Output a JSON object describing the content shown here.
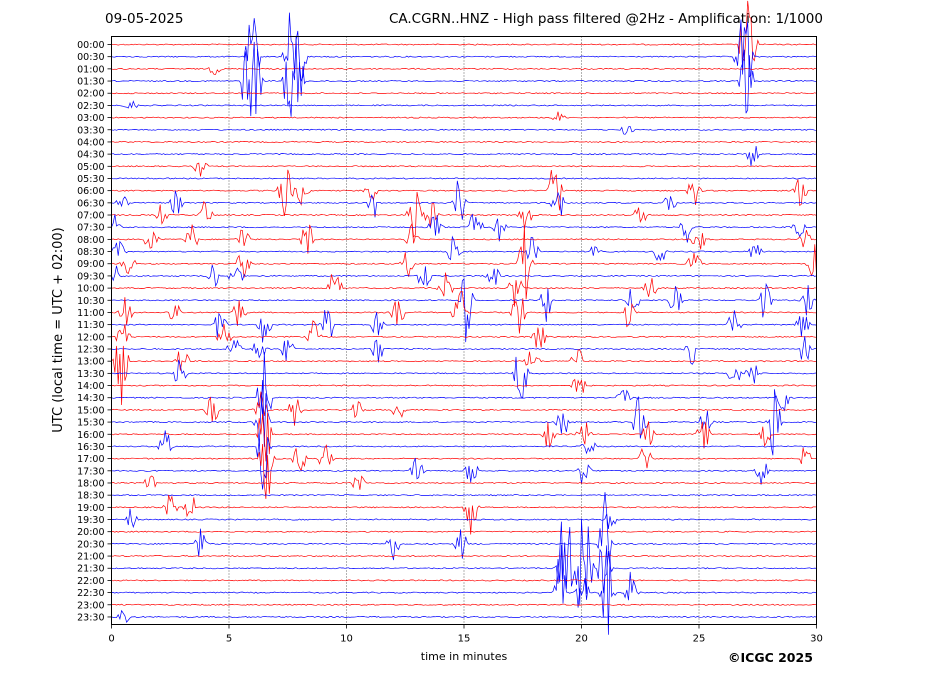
{
  "header": {
    "date": "09-05-2025",
    "title": "CA.CGRN..HNZ - High pass filtered @2Hz - Amplification: 1/1000"
  },
  "copyright": "©ICGC 2025",
  "chart_data": {
    "type": "line",
    "title": "CA.CGRN..HNZ - High pass filtered @2Hz - Amplification: 1/1000",
    "xlabel": "time in minutes",
    "ylabel": "UTC (local time = UTC + 02:00)",
    "xlim": [
      0,
      30
    ],
    "x_ticks": [
      0,
      5,
      10,
      15,
      20,
      25,
      30
    ],
    "grid": "vertical dotted lines at 5-minute intervals",
    "colors": {
      "odd_rows": "#ff0000",
      "even_rows": "#0000ff"
    },
    "traces": [
      {
        "label": "00:00",
        "color": "#ff0000",
        "spikes": [
          [
            27.0,
            1.0
          ],
          [
            27.2,
            0.8
          ]
        ]
      },
      {
        "label": "00:30",
        "color": "#0000ff",
        "spikes": [
          [
            6.0,
            1.0
          ],
          [
            7.6,
            0.9
          ],
          [
            8.0,
            0.9
          ],
          [
            26.8,
            0.8
          ],
          [
            27.0,
            1.0
          ]
        ]
      },
      {
        "label": "01:00",
        "color": "#ff0000",
        "spikes": [
          [
            4.4,
            0.1
          ]
        ]
      },
      {
        "label": "01:30",
        "color": "#0000ff",
        "spikes": [
          [
            5.8,
            1.0
          ],
          [
            6.1,
            1.0
          ],
          [
            7.6,
            1.0
          ],
          [
            7.9,
            0.9
          ],
          [
            27.0,
            1.0
          ]
        ]
      },
      {
        "label": "02:00",
        "color": "#ff0000",
        "spikes": []
      },
      {
        "label": "02:30",
        "color": "#0000ff",
        "spikes": [
          [
            0.8,
            0.1
          ]
        ]
      },
      {
        "label": "03:00",
        "color": "#ff0000",
        "spikes": [
          [
            19.0,
            0.1
          ]
        ]
      },
      {
        "label": "03:30",
        "color": "#0000ff",
        "spikes": [
          [
            21.9,
            0.1
          ]
        ]
      },
      {
        "label": "04:00",
        "color": "#ff0000",
        "spikes": []
      },
      {
        "label": "04:30",
        "color": "#0000ff",
        "spikes": [
          [
            27.3,
            0.3
          ]
        ]
      },
      {
        "label": "05:00",
        "color": "#ff0000",
        "spikes": [
          [
            3.8,
            0.2
          ]
        ]
      },
      {
        "label": "05:30",
        "color": "#0000ff",
        "spikes": []
      },
      {
        "label": "06:00",
        "color": "#ff0000",
        "spikes": [
          [
            7.4,
            0.8
          ],
          [
            8.1,
            0.3
          ],
          [
            11.0,
            0.3
          ],
          [
            18.9,
            0.8
          ],
          [
            24.8,
            0.3
          ],
          [
            29.3,
            0.3
          ]
        ]
      },
      {
        "label": "06:30",
        "color": "#0000ff",
        "spikes": [
          [
            0.4,
            0.2
          ],
          [
            2.8,
            0.3
          ],
          [
            11.2,
            0.3
          ],
          [
            14.8,
            0.6
          ],
          [
            19.0,
            0.4
          ],
          [
            23.8,
            0.2
          ]
        ]
      },
      {
        "label": "07:00",
        "color": "#ff0000",
        "spikes": [
          [
            2.1,
            0.2
          ],
          [
            4.0,
            0.3
          ],
          [
            12.9,
            0.8
          ],
          [
            13.6,
            0.3
          ],
          [
            17.6,
            0.3
          ],
          [
            22.5,
            0.2
          ]
        ]
      },
      {
        "label": "07:30",
        "color": "#0000ff",
        "spikes": [
          [
            0.1,
            0.3
          ],
          [
            13.8,
            0.3
          ],
          [
            15.5,
            0.5
          ],
          [
            16.5,
            0.3
          ],
          [
            24.5,
            0.3
          ],
          [
            29.2,
            0.3
          ]
        ]
      },
      {
        "label": "08:00",
        "color": "#ff0000",
        "spikes": [
          [
            1.7,
            0.3
          ],
          [
            3.4,
            0.3
          ],
          [
            5.6,
            0.3
          ],
          [
            8.3,
            0.4
          ],
          [
            12.8,
            0.3
          ],
          [
            25.0,
            0.3
          ],
          [
            29.5,
            0.3
          ]
        ]
      },
      {
        "label": "08:30",
        "color": "#0000ff",
        "spikes": [
          [
            0.3,
            0.2
          ],
          [
            14.6,
            0.4
          ],
          [
            17.9,
            0.4
          ],
          [
            20.6,
            0.3
          ],
          [
            23.3,
            0.3
          ],
          [
            27.4,
            0.2
          ]
        ]
      },
      {
        "label": "09:00",
        "color": "#ff0000",
        "spikes": [
          [
            0.7,
            0.3
          ],
          [
            5.6,
            0.3
          ],
          [
            12.6,
            0.3
          ],
          [
            17.6,
            0.8
          ],
          [
            24.8,
            0.3
          ],
          [
            29.9,
            0.4
          ]
        ]
      },
      {
        "label": "09:30",
        "color": "#0000ff",
        "spikes": [
          [
            0.1,
            0.3
          ],
          [
            4.3,
            0.3
          ],
          [
            5.3,
            0.3
          ],
          [
            13.3,
            0.3
          ],
          [
            16.2,
            0.3
          ]
        ]
      },
      {
        "label": "10:00",
        "color": "#ff0000",
        "spikes": [
          [
            9.5,
            0.4
          ],
          [
            14.2,
            0.4
          ],
          [
            17.2,
            0.4
          ],
          [
            22.9,
            0.3
          ]
        ]
      },
      {
        "label": "10:30",
        "color": "#0000ff",
        "spikes": [
          [
            15.1,
            0.9
          ],
          [
            18.5,
            0.4
          ],
          [
            22.2,
            0.3
          ],
          [
            24.0,
            0.3
          ],
          [
            27.8,
            0.4
          ],
          [
            29.6,
            0.3
          ]
        ]
      },
      {
        "label": "11:00",
        "color": "#ff0000",
        "spikes": [
          [
            0.6,
            0.3
          ],
          [
            2.7,
            0.3
          ],
          [
            5.4,
            0.3
          ],
          [
            12.2,
            0.3
          ],
          [
            14.8,
            0.6
          ],
          [
            17.3,
            0.6
          ],
          [
            22.0,
            0.3
          ]
        ]
      },
      {
        "label": "11:30",
        "color": "#0000ff",
        "spikes": [
          [
            4.6,
            0.3
          ],
          [
            6.5,
            0.4
          ],
          [
            9.2,
            0.4
          ],
          [
            11.3,
            0.3
          ],
          [
            26.5,
            0.3
          ],
          [
            29.4,
            0.3
          ]
        ]
      },
      {
        "label": "12:00",
        "color": "#ff0000",
        "spikes": [
          [
            0.5,
            0.3
          ],
          [
            4.8,
            0.3
          ],
          [
            8.6,
            0.3
          ],
          [
            18.2,
            0.3
          ]
        ]
      },
      {
        "label": "12:30",
        "color": "#0000ff",
        "spikes": [
          [
            5.2,
            0.3
          ],
          [
            6.3,
            0.3
          ],
          [
            7.5,
            0.3
          ],
          [
            11.3,
            0.3
          ],
          [
            24.7,
            0.3
          ],
          [
            29.5,
            0.3
          ]
        ]
      },
      {
        "label": "13:00",
        "color": "#ff0000",
        "spikes": [
          [
            0.4,
            0.9
          ],
          [
            3.0,
            0.3
          ],
          [
            17.9,
            0.3
          ],
          [
            19.8,
            0.3
          ]
        ]
      },
      {
        "label": "13:30",
        "color": "#0000ff",
        "spikes": [
          [
            2.9,
            0.3
          ],
          [
            17.4,
            0.8
          ],
          [
            26.5,
            0.3
          ],
          [
            27.3,
            0.3
          ]
        ]
      },
      {
        "label": "14:00",
        "color": "#ff0000",
        "spikes": [
          [
            19.9,
            0.3
          ]
        ]
      },
      {
        "label": "14:30",
        "color": "#0000ff",
        "spikes": [
          [
            6.5,
            1.0
          ],
          [
            21.8,
            0.3
          ],
          [
            28.6,
            0.3
          ]
        ]
      },
      {
        "label": "15:00",
        "color": "#ff0000",
        "spikes": [
          [
            4.3,
            0.3
          ],
          [
            6.3,
            0.4
          ],
          [
            7.8,
            0.3
          ],
          [
            10.5,
            0.3
          ],
          [
            12.2,
            0.2
          ]
        ]
      },
      {
        "label": "15:30",
        "color": "#0000ff",
        "spikes": [
          [
            6.4,
            1.0
          ],
          [
            19.2,
            0.3
          ],
          [
            22.5,
            0.8
          ],
          [
            25.3,
            0.3
          ],
          [
            28.2,
            0.8
          ]
        ]
      },
      {
        "label": "16:00",
        "color": "#ff0000",
        "spikes": [
          [
            6.5,
            0.9
          ],
          [
            18.6,
            0.3
          ],
          [
            20.1,
            0.3
          ],
          [
            22.8,
            0.3
          ],
          [
            25.2,
            0.3
          ],
          [
            27.8,
            0.3
          ]
        ]
      },
      {
        "label": "16:30",
        "color": "#0000ff",
        "spikes": [
          [
            6.5,
            1.0
          ],
          [
            2.3,
            0.3
          ],
          [
            20.3,
            0.2
          ]
        ]
      },
      {
        "label": "17:00",
        "color": "#ff0000",
        "spikes": [
          [
            6.6,
            1.0
          ],
          [
            8.0,
            0.3
          ],
          [
            9.1,
            0.3
          ],
          [
            22.7,
            0.3
          ],
          [
            29.5,
            0.3
          ]
        ]
      },
      {
        "label": "17:30",
        "color": "#0000ff",
        "spikes": [
          [
            13.0,
            0.3
          ],
          [
            15.3,
            0.3
          ],
          [
            20.1,
            0.3
          ],
          [
            27.7,
            0.3
          ]
        ]
      },
      {
        "label": "18:00",
        "color": "#ff0000",
        "spikes": [
          [
            1.7,
            0.2
          ],
          [
            10.5,
            0.2
          ]
        ]
      },
      {
        "label": "18:30",
        "color": "#0000ff",
        "spikes": []
      },
      {
        "label": "19:00",
        "color": "#ff0000",
        "spikes": [
          [
            2.5,
            0.3
          ],
          [
            3.4,
            0.3
          ],
          [
            15.3,
            0.6
          ]
        ]
      },
      {
        "label": "19:30",
        "color": "#0000ff",
        "spikes": [
          [
            0.8,
            0.2
          ],
          [
            21.2,
            0.2
          ]
        ]
      },
      {
        "label": "20:00",
        "color": "#ff0000",
        "spikes": []
      },
      {
        "label": "20:30",
        "color": "#0000ff",
        "spikes": [
          [
            3.8,
            0.3
          ],
          [
            12.0,
            0.3
          ],
          [
            14.9,
            0.3
          ],
          [
            21.0,
            1.0
          ]
        ]
      },
      {
        "label": "21:00",
        "color": "#ff0000",
        "spikes": []
      },
      {
        "label": "21:30",
        "color": "#0000ff",
        "spikes": [
          [
            19.2,
            1.0
          ],
          [
            19.5,
            0.8
          ],
          [
            20.0,
            1.0
          ],
          [
            20.2,
            1.0
          ],
          [
            21.0,
            1.0
          ]
        ]
      },
      {
        "label": "22:00",
        "color": "#ff0000",
        "spikes": []
      },
      {
        "label": "22:30",
        "color": "#0000ff",
        "spikes": [
          [
            19.1,
            1.0
          ],
          [
            20.0,
            1.0
          ],
          [
            21.1,
            1.0
          ],
          [
            22.1,
            0.4
          ]
        ]
      },
      {
        "label": "23:00",
        "color": "#ff0000",
        "spikes": []
      },
      {
        "label": "23:30",
        "color": "#0000ff",
        "spikes": [
          [
            0.5,
            0.2
          ]
        ]
      }
    ]
  }
}
